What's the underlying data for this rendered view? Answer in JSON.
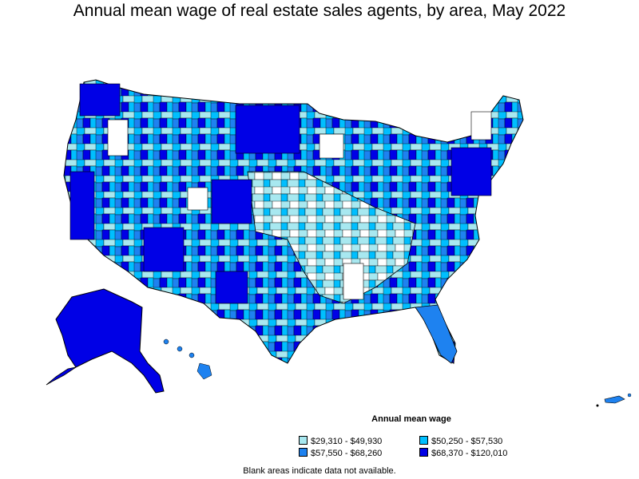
{
  "title": "Annual mean wage of real estate sales agents, by area, May 2022",
  "legend": {
    "title": "Annual mean wage",
    "items": [
      {
        "label": "$29,310 - $49,930",
        "color": "#a8e8f0"
      },
      {
        "label": "$50,250 - $57,530",
        "color": "#00bfff"
      },
      {
        "label": "$57,550 - $68,260",
        "color": "#1e82f0"
      },
      {
        "label": "$68,370 - $120,010",
        "color": "#0000e6"
      }
    ]
  },
  "note": "Blank areas indicate data not available.",
  "colors": {
    "blank": "#ffffff",
    "border": "#000000"
  }
}
